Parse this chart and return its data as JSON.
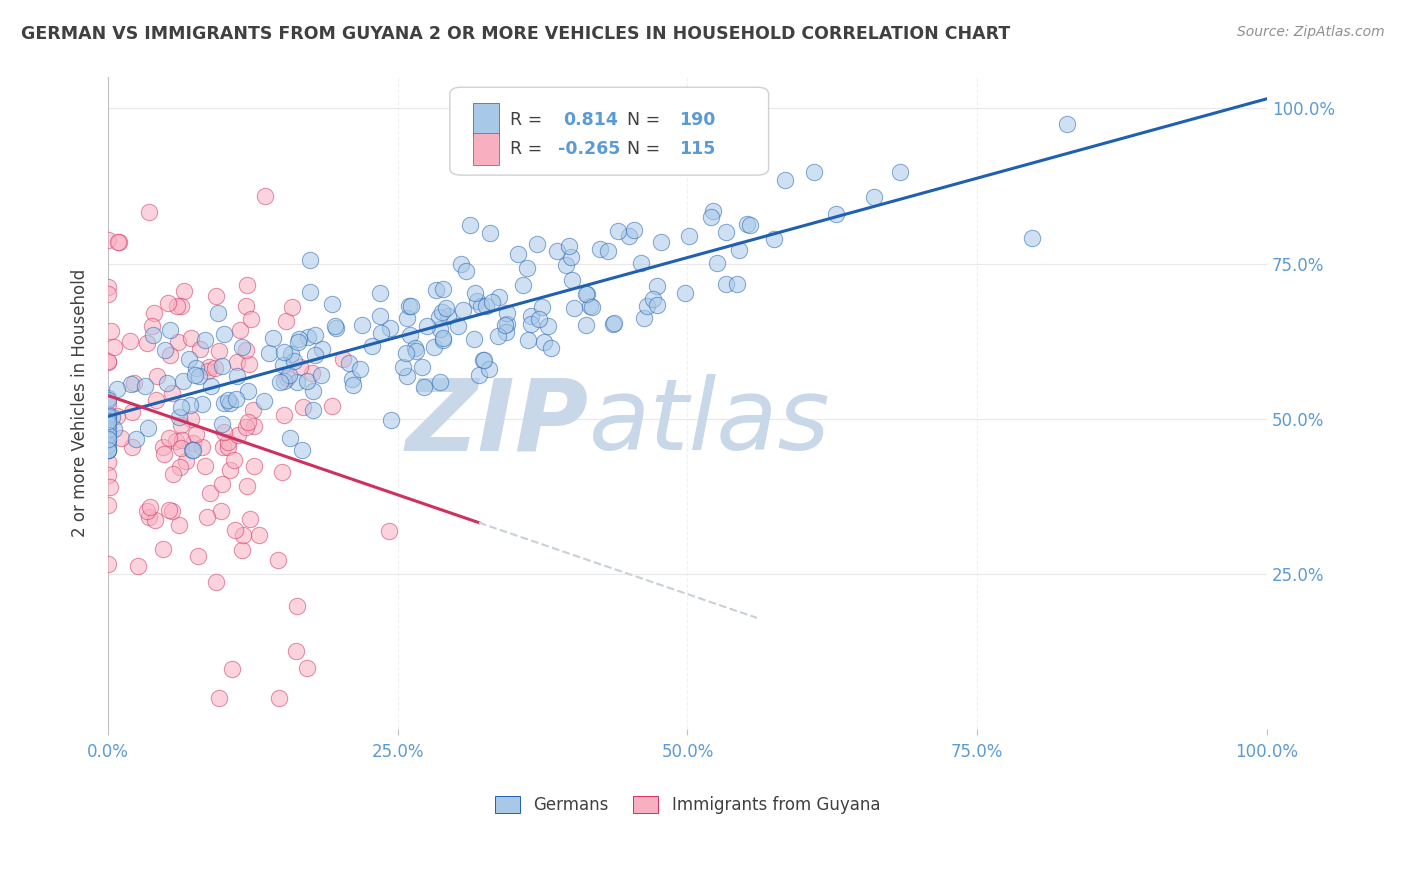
{
  "title": "GERMAN VS IMMIGRANTS FROM GUYANA 2 OR MORE VEHICLES IN HOUSEHOLD CORRELATION CHART",
  "source": "Source: ZipAtlas.com",
  "ylabel": "2 or more Vehicles in Household",
  "blue_scatter_color": "#a8c8e8",
  "pink_scatter_color": "#f8b0c0",
  "blue_line_color": "#2060b0",
  "pink_line_color": "#d03060",
  "pink_dash_color": "#c8d0d8",
  "watermark_zip": "ZIP",
  "watermark_atlas": "atlas",
  "watermark_zip_color": "#c8d8e8",
  "watermark_atlas_color": "#c8d8e8",
  "background_color": "#ffffff",
  "grid_color": "#e8e8e8",
  "axis_label_color": "#5b9bd5",
  "title_color": "#404040",
  "source_color": "#909090",
  "blue_N": 190,
  "pink_N": 115,
  "blue_R": 0.814,
  "pink_R": -0.265,
  "blue_seed": 12,
  "pink_seed": 99,
  "xmin": 0.0,
  "xmax": 1.0,
  "ymin": 0.0,
  "ymax": 1.05,
  "legend_R_color": "#5b9bd5",
  "legend_N_color": "#5b9bd5",
  "legend_text_color": "#404040"
}
